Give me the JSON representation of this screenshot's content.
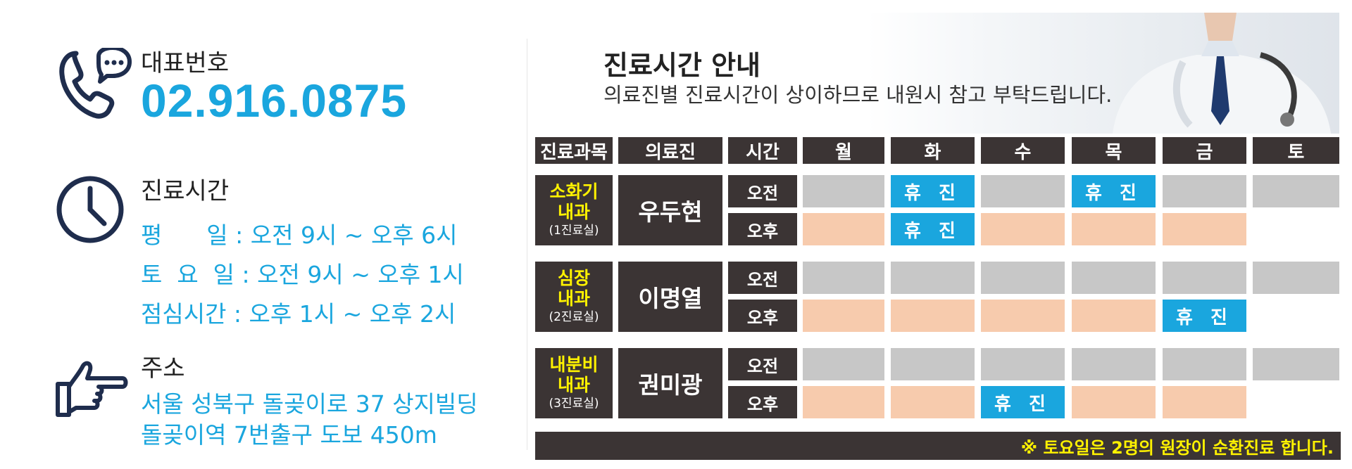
{
  "contact": {
    "phone_label": "대표번호",
    "phone_number": "02.916.0875"
  },
  "hours": {
    "label": "진료시간",
    "weekday": "평      일 : 오전 9시 ~ 오후 6시",
    "saturday": "토  요  일 : 오전 9시 ~ 오후 1시",
    "lunch": "점심시간 : 오후 1시 ~ 오후 2시"
  },
  "address": {
    "label": "주소",
    "line1": "서울 성북구 돌곶이로 37 상지빌딩",
    "line2": "돌곶이역 7번출구 도보 450m"
  },
  "schedule": {
    "title": "진료시간 안내",
    "subtitle": "의료진별 진료시간이 상이하므로 내원시 참고 부탁드립니다.",
    "headers": [
      "진료과목",
      "의료진",
      "시간",
      "월",
      "화",
      "수",
      "목",
      "금",
      "토"
    ],
    "am_label": "오전",
    "pm_label": "오후",
    "closed_label": "휴 진",
    "doctors": [
      {
        "dept": "소화기\n내과",
        "dept_line1": "소화기",
        "dept_line2": "내과",
        "room": "(1진료실)",
        "name": "우두현",
        "am": [
          "open",
          "closed",
          "open",
          "closed",
          "open",
          "open"
        ],
        "pm": [
          "open",
          "closed",
          "open",
          "open",
          "open",
          "none"
        ]
      },
      {
        "dept_line1": "심장",
        "dept_line2": "내과",
        "room": "(2진료실)",
        "name": "이명열",
        "am": [
          "open",
          "open",
          "open",
          "open",
          "open",
          "open"
        ],
        "pm": [
          "open",
          "open",
          "open",
          "open",
          "closed",
          "none"
        ]
      },
      {
        "dept_line1": "내분비",
        "dept_line2": "내과",
        "room": "(3진료실)",
        "name": "권미광",
        "am": [
          "open",
          "open",
          "open",
          "open",
          "open",
          "open"
        ],
        "pm": [
          "open",
          "open",
          "closed",
          "open",
          "open",
          "none"
        ]
      }
    ],
    "footer_note": "※ 토요일은 2명의 원장이 순환진료 합니다."
  },
  "icons": {
    "phone": "phone-chat-icon",
    "clock": "clock-icon",
    "hand": "pointing-hand-icon"
  },
  "colors": {
    "accent_blue": "#1aa6de",
    "navy": "#1f2d4d",
    "dark": "#3b3434",
    "yellow": "#fff200",
    "am_gray": "#c7c7c7",
    "pm_peach": "#f7cbad"
  }
}
